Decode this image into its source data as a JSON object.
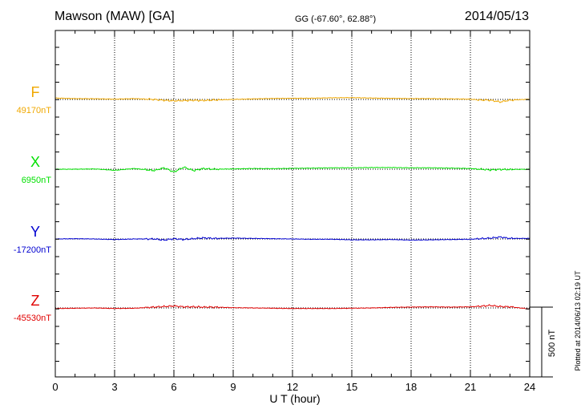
{
  "header": {
    "station": "Mawson (MAW)  [GA]",
    "coords": "GG (-67.60°,  62.88°)",
    "date": "2014/05/13"
  },
  "side_note": "Plotted at 2014/06/13 02:19 UT",
  "scale_label": "500 nT",
  "chart_data": {
    "type": "line",
    "xlabel": "U T (hour)",
    "ylabel": "",
    "xlim": [
      0,
      24
    ],
    "xticks": [
      0,
      3,
      6,
      9,
      12,
      15,
      18,
      21,
      24
    ],
    "grid": true,
    "scale_bar_nT": 500,
    "series": [
      {
        "name": "F",
        "baseline_label": "49170nT",
        "color": "#F0A800",
        "x": [
          0,
          1,
          2,
          3,
          4,
          5,
          5.5,
          6,
          6.5,
          7,
          7.5,
          8,
          9,
          10,
          11,
          12,
          13,
          14,
          15,
          16,
          17,
          18,
          19,
          20,
          21,
          21.5,
          22,
          22.5,
          23,
          24
        ],
        "values": [
          10,
          6,
          5,
          2,
          6,
          0,
          -6,
          -10,
          -8,
          -6,
          -8,
          -4,
          0,
          4,
          7,
          8,
          9,
          12,
          13,
          10,
          8,
          6,
          6,
          4,
          2,
          -4,
          -5,
          -18,
          -5,
          2
        ]
      },
      {
        "name": "X",
        "baseline_label": "6950nT",
        "color": "#00E000",
        "x": [
          0,
          1,
          2,
          3,
          4,
          5,
          5.5,
          6,
          6.5,
          7,
          7.5,
          8,
          9,
          10,
          11,
          12,
          13,
          14,
          15,
          16,
          17,
          18,
          19,
          20,
          21,
          21.5,
          22,
          22.5,
          23,
          24
        ],
        "values": [
          0,
          0,
          2,
          -8,
          5,
          -10,
          10,
          -20,
          15,
          -10,
          5,
          0,
          2,
          5,
          4,
          6,
          8,
          10,
          10,
          12,
          12,
          10,
          10,
          8,
          5,
          0,
          -5,
          -2,
          -2,
          0
        ]
      },
      {
        "name": "Y",
        "baseline_label": "-17200nT",
        "color": "#0000D0",
        "x": [
          0,
          1,
          2,
          3,
          4,
          5,
          5.5,
          6,
          6.5,
          7,
          7.5,
          8,
          9,
          10,
          11,
          12,
          13,
          14,
          15,
          16,
          17,
          18,
          19,
          20,
          21,
          21.5,
          22,
          22.5,
          23,
          24
        ],
        "values": [
          0,
          2,
          0,
          -4,
          0,
          0,
          -8,
          2,
          -4,
          2,
          8,
          4,
          6,
          4,
          2,
          0,
          -2,
          -2,
          -6,
          -6,
          -4,
          -8,
          -6,
          -4,
          -2,
          2,
          6,
          14,
          4,
          4
        ]
      },
      {
        "name": "Z",
        "baseline_label": "-45530nT",
        "color": "#E00000",
        "x": [
          0,
          1,
          2,
          3,
          4,
          5,
          5.5,
          6,
          6.5,
          7,
          7.5,
          8,
          9,
          10,
          11,
          12,
          13,
          14,
          15,
          16,
          17,
          18,
          19,
          20,
          21,
          21.5,
          22,
          22.5,
          23,
          24
        ],
        "values": [
          -4,
          -2,
          0,
          -4,
          -2,
          6,
          10,
          14,
          8,
          8,
          6,
          6,
          2,
          0,
          -2,
          -4,
          -4,
          -4,
          -2,
          0,
          4,
          6,
          8,
          6,
          8,
          12,
          18,
          10,
          8,
          -8
        ]
      }
    ]
  }
}
